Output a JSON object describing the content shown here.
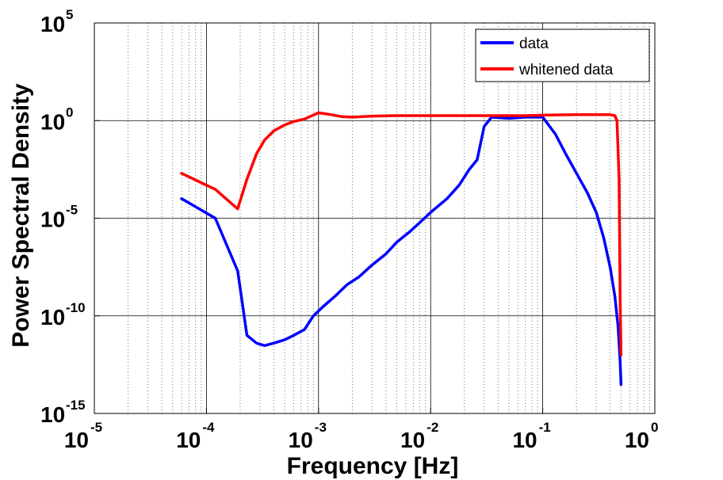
{
  "chart_data": {
    "type": "line",
    "xlabel": "Frequency  [Hz]",
    "ylabel": "Power Spectral Density",
    "x_scale": "log",
    "y_scale": "log",
    "xlim": [
      1e-05,
      1
    ],
    "ylim": [
      1e-15,
      100000.0
    ],
    "grid": true,
    "legend_position": "top-right",
    "x_ticks": [
      {
        "value": 1e-05,
        "base": "10",
        "exp": "-5"
      },
      {
        "value": 0.0001,
        "base": "10",
        "exp": "-4"
      },
      {
        "value": 0.001,
        "base": "10",
        "exp": "-3"
      },
      {
        "value": 0.01,
        "base": "10",
        "exp": "-2"
      },
      {
        "value": 0.1,
        "base": "10",
        "exp": "-1"
      },
      {
        "value": 1,
        "base": "10",
        "exp": "0"
      }
    ],
    "y_ticks": [
      {
        "value": 1e-15,
        "base": "10",
        "exp": "-15"
      },
      {
        "value": 1e-10,
        "base": "10",
        "exp": "-10"
      },
      {
        "value": 1e-05,
        "base": "10",
        "exp": "-5"
      },
      {
        "value": 1,
        "base": "10",
        "exp": "0"
      },
      {
        "value": 100000.0,
        "base": "10",
        "exp": "5"
      }
    ],
    "series": [
      {
        "name": "data",
        "color": "#0000ff",
        "points": [
          [
            6e-05,
            0.0001
          ],
          [
            0.00012,
            1e-05
          ],
          [
            0.00019,
            2e-08
          ],
          [
            0.00023,
            1e-11
          ],
          [
            0.00028,
            4e-12
          ],
          [
            0.00033,
            3e-12
          ],
          [
            0.0004,
            4e-12
          ],
          [
            0.0005,
            6e-12
          ],
          [
            0.0006,
            1e-11
          ],
          [
            0.00075,
            2e-11
          ],
          [
            0.0009,
            1e-10
          ],
          [
            0.0011,
            3e-10
          ],
          [
            0.0014,
            1e-09
          ],
          [
            0.0018,
            4e-09
          ],
          [
            0.0023,
            1e-08
          ],
          [
            0.003,
            4e-08
          ],
          [
            0.004,
            1.5e-07
          ],
          [
            0.005,
            6e-07
          ],
          [
            0.0065,
            2e-06
          ],
          [
            0.008,
            6e-06
          ],
          [
            0.01,
            2e-05
          ],
          [
            0.014,
            0.0001
          ],
          [
            0.018,
            0.0005
          ],
          [
            0.022,
            0.003
          ],
          [
            0.026,
            0.01
          ],
          [
            0.03,
            0.5
          ],
          [
            0.035,
            1.5
          ],
          [
            0.05,
            1.3
          ],
          [
            0.07,
            1.5
          ],
          [
            0.1,
            1.5
          ],
          [
            0.13,
            0.2
          ],
          [
            0.16,
            0.02
          ],
          [
            0.2,
            0.002
          ],
          [
            0.25,
            0.0002
          ],
          [
            0.3,
            2e-05
          ],
          [
            0.35,
            1e-06
          ],
          [
            0.4,
            3e-08
          ],
          [
            0.44,
            1e-09
          ],
          [
            0.47,
            3e-11
          ],
          [
            0.49,
            5e-13
          ],
          [
            0.5,
            3e-14
          ]
        ]
      },
      {
        "name": "whitened data",
        "color": "#ff0000",
        "points": [
          [
            6e-05,
            0.002
          ],
          [
            0.00012,
            0.0003
          ],
          [
            0.00019,
            3e-05
          ],
          [
            0.00023,
            0.001
          ],
          [
            0.00028,
            0.02
          ],
          [
            0.00033,
            0.1
          ],
          [
            0.0004,
            0.3
          ],
          [
            0.0005,
            0.6
          ],
          [
            0.0006,
            0.9
          ],
          [
            0.00075,
            1.2
          ],
          [
            0.001,
            2.5
          ],
          [
            0.0013,
            2
          ],
          [
            0.0016,
            1.6
          ],
          [
            0.002,
            1.5
          ],
          [
            0.003,
            1.7
          ],
          [
            0.005,
            1.8
          ],
          [
            0.01,
            1.8
          ],
          [
            0.02,
            1.8
          ],
          [
            0.04,
            1.8
          ],
          [
            0.07,
            1.8
          ],
          [
            0.1,
            1.9
          ],
          [
            0.2,
            2
          ],
          [
            0.3,
            2
          ],
          [
            0.4,
            2
          ],
          [
            0.44,
            1.8
          ],
          [
            0.46,
            1
          ],
          [
            0.48,
            0.001
          ],
          [
            0.49,
            1e-09
          ],
          [
            0.5,
            1e-12
          ]
        ]
      }
    ]
  }
}
